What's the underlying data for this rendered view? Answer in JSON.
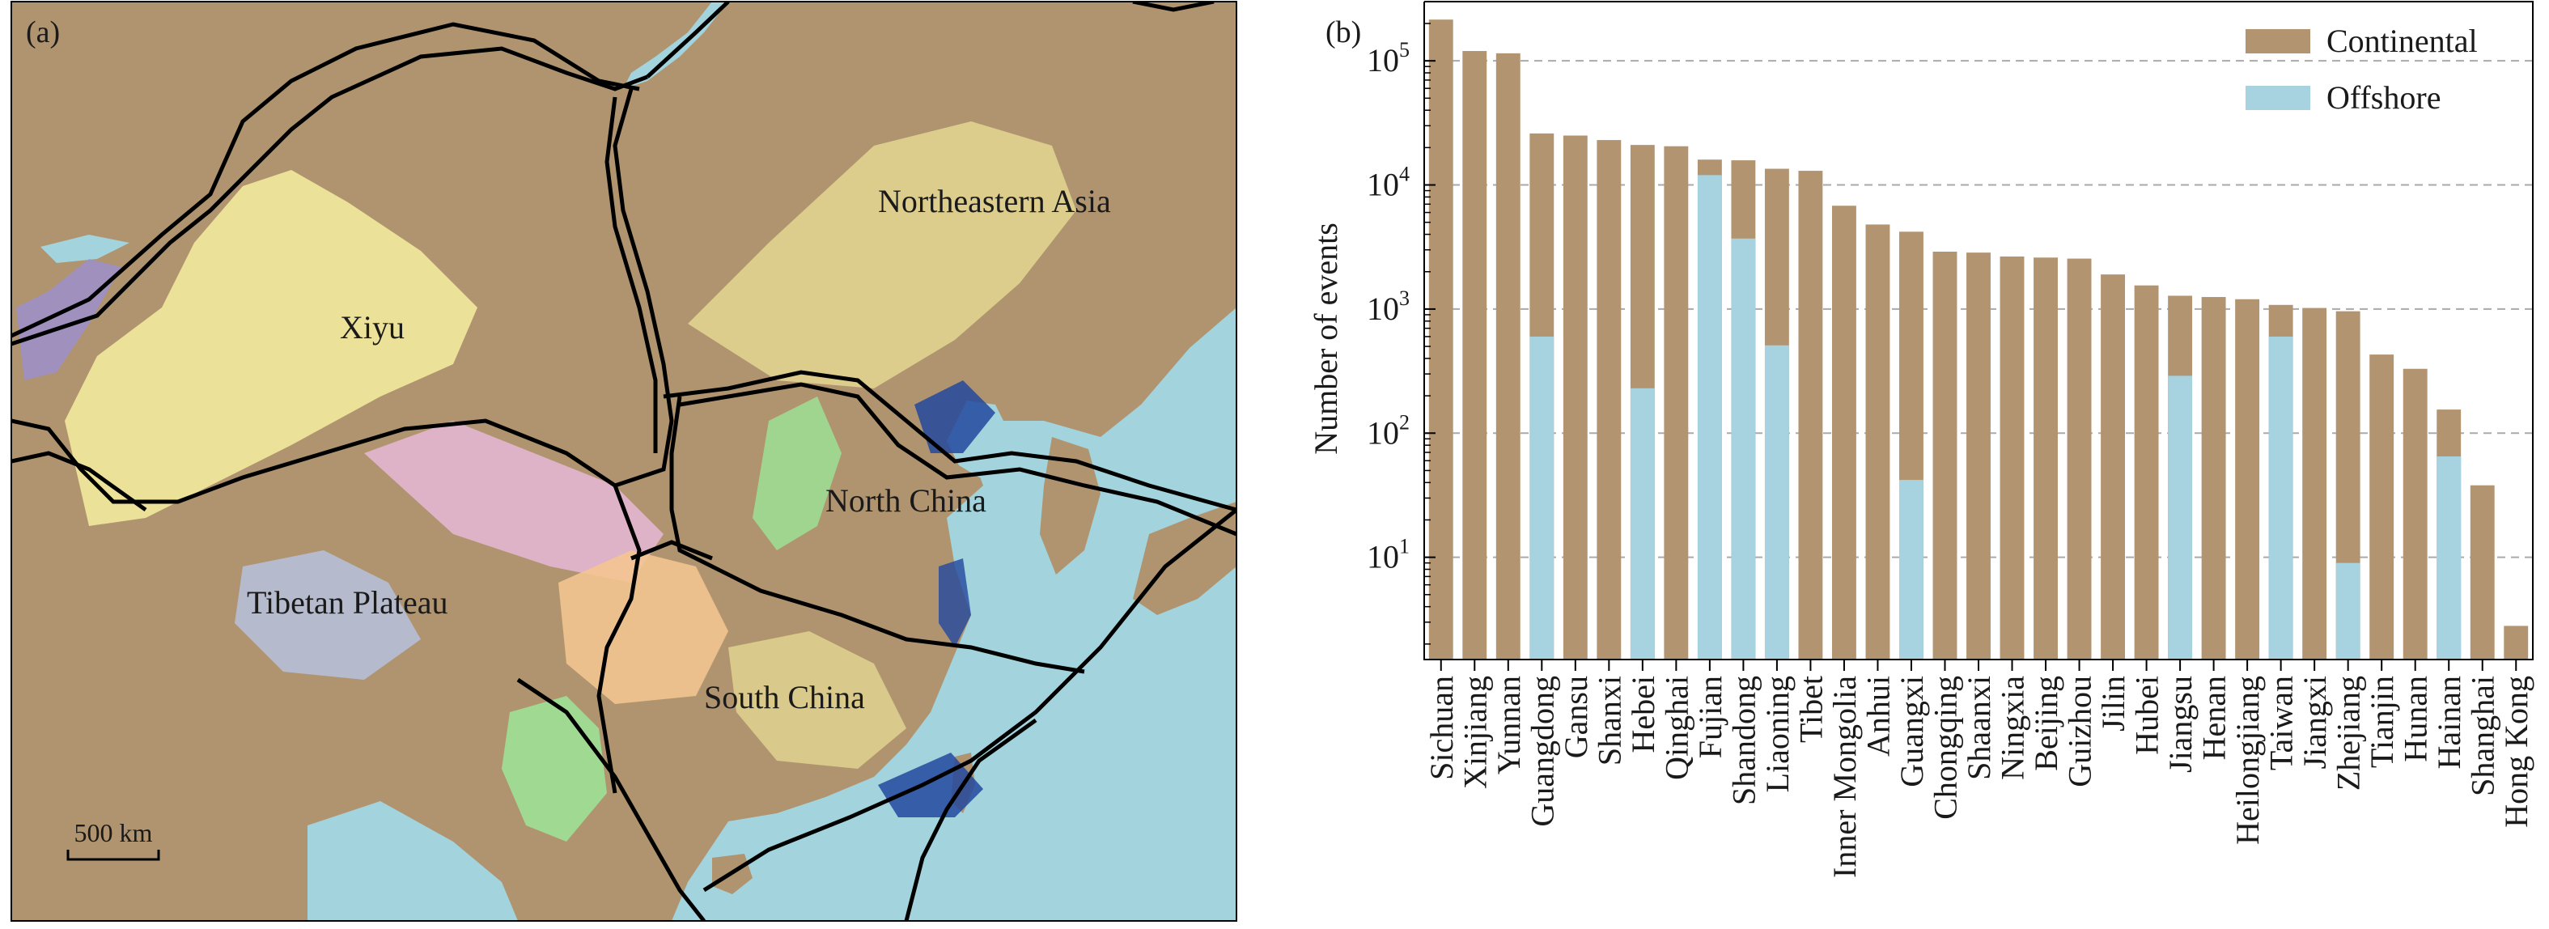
{
  "panel_a": {
    "label": "(a)",
    "regions": [
      "Xiyu",
      "Northeastern Asia",
      "North China",
      "Tibetan Plateau",
      "South China"
    ],
    "scale_bar": "500 km",
    "colors": {
      "land": "#b0946f",
      "sea": "#a3d3dc",
      "boundary": "#000000",
      "cluster_yellow": "#efe59a",
      "cluster_pink": "#eab9dd",
      "cluster_orange": "#f3c490",
      "cluster_green": "#9fdc93",
      "cluster_lightblue": "#b7c8ec",
      "cluster_purple": "#9c8fd2",
      "cluster_darkblue": "#23499f"
    }
  },
  "panel_b": {
    "label": "(b)"
  },
  "chart_data": {
    "type": "bar",
    "stacked_overlay": true,
    "ylabel": "Number of events",
    "yscale": "log",
    "ylim": [
      1.5,
      300000
    ],
    "yticks": [
      {
        "value": 10,
        "base": "10",
        "exp": "1"
      },
      {
        "value": 100,
        "base": "10",
        "exp": "2"
      },
      {
        "value": 1000,
        "base": "10",
        "exp": "3"
      },
      {
        "value": 10000,
        "base": "10",
        "exp": "4"
      },
      {
        "value": 100000,
        "base": "10",
        "exp": "5"
      }
    ],
    "grid": "horizontal dashed",
    "legend_position": "top-right",
    "categories": [
      "Sichuan",
      "Xinjiang",
      "Yunnan",
      "Guangdong",
      "Gansu",
      "Shanxi",
      "Hebei",
      "Qinghai",
      "Fujian",
      "Shandong",
      "Liaoning",
      "Tibet",
      "Inner Mongolia",
      "Anhui",
      "Guangxi",
      "Chongqing",
      "Shaanxi",
      "Ningxia",
      "Beijing",
      "Guizhou",
      "Jilin",
      "Hubei",
      "Jiangsu",
      "Henan",
      "Heilongjiang",
      "Taiwan",
      "Jiangxi",
      "Zhejiang",
      "Tianjin",
      "Hunan",
      "Hainan",
      "Shanghai",
      "Hong Kong"
    ],
    "series": [
      {
        "name": "Continental",
        "color": "#b39470",
        "values": [
          215000,
          120000,
          115000,
          26000,
          25000,
          23000,
          21000,
          20500,
          16000,
          15800,
          13500,
          13000,
          6800,
          4800,
          4200,
          2900,
          2850,
          2650,
          2600,
          2550,
          1900,
          1550,
          1280,
          1250,
          1200,
          1080,
          1020,
          960,
          430,
          330,
          155,
          38,
          2.8
        ]
      },
      {
        "name": "Offshore",
        "color": "#a6d3df",
        "values": [
          null,
          null,
          null,
          600,
          null,
          null,
          230,
          null,
          12000,
          3700,
          510,
          null,
          null,
          null,
          42,
          null,
          null,
          null,
          null,
          null,
          null,
          null,
          290,
          null,
          null,
          600,
          null,
          9,
          null,
          null,
          65,
          null,
          null
        ]
      }
    ]
  }
}
